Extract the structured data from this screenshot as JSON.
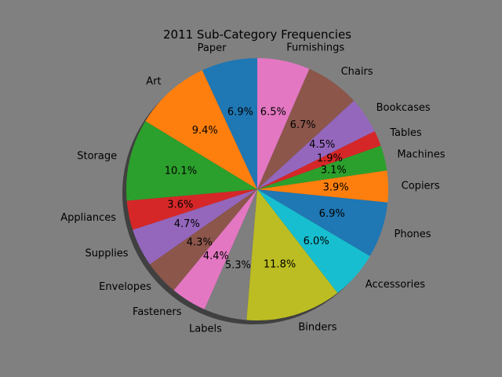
{
  "chart_data": {
    "type": "pie",
    "title": "2011 Sub-Category Frequencies",
    "start_angle_deg": 90,
    "direction": "counterclockwise",
    "shadow": true,
    "background": "#808080",
    "slices": [
      {
        "label": "Paper",
        "pct": 6.9,
        "pct_text": "6.9%",
        "color": "#1f77b4"
      },
      {
        "label": "Art",
        "pct": 9.4,
        "pct_text": "9.4%",
        "color": "#ff7f0e"
      },
      {
        "label": "Storage",
        "pct": 10.1,
        "pct_text": "10.1%",
        "color": "#2ca02c"
      },
      {
        "label": "Appliances",
        "pct": 3.6,
        "pct_text": "3.6%",
        "color": "#d62728"
      },
      {
        "label": "Supplies",
        "pct": 4.7,
        "pct_text": "4.7%",
        "color": "#9467bd"
      },
      {
        "label": "Envelopes",
        "pct": 4.3,
        "pct_text": "4.3%",
        "color": "#8c564b"
      },
      {
        "label": "Fasteners",
        "pct": 4.4,
        "pct_text": "4.4%",
        "color": "#e377c2"
      },
      {
        "label": "Labels",
        "pct": 5.3,
        "pct_text": "5.3%",
        "color": "#7f7f7f"
      },
      {
        "label": "Binders",
        "pct": 11.8,
        "pct_text": "11.8%",
        "color": "#bcbd22"
      },
      {
        "label": "Accessories",
        "pct": 6.0,
        "pct_text": "6.0%",
        "color": "#17becf"
      },
      {
        "label": "Phones",
        "pct": 6.9,
        "pct_text": "6.9%",
        "color": "#1f77b4"
      },
      {
        "label": "Copiers",
        "pct": 3.9,
        "pct_text": "3.9%",
        "color": "#ff7f0e"
      },
      {
        "label": "Machines",
        "pct": 3.1,
        "pct_text": "3.1%",
        "color": "#2ca02c"
      },
      {
        "label": "Tables",
        "pct": 1.9,
        "pct_text": "1.9%",
        "color": "#d62728"
      },
      {
        "label": "Bookcases",
        "pct": 4.5,
        "pct_text": "4.5%",
        "color": "#9467bd"
      },
      {
        "label": "Chairs",
        "pct": 6.7,
        "pct_text": "6.7%",
        "color": "#8c564b"
      },
      {
        "label": "Furnishings",
        "pct": 6.5,
        "pct_text": "6.5%",
        "color": "#e377c2"
      }
    ]
  }
}
